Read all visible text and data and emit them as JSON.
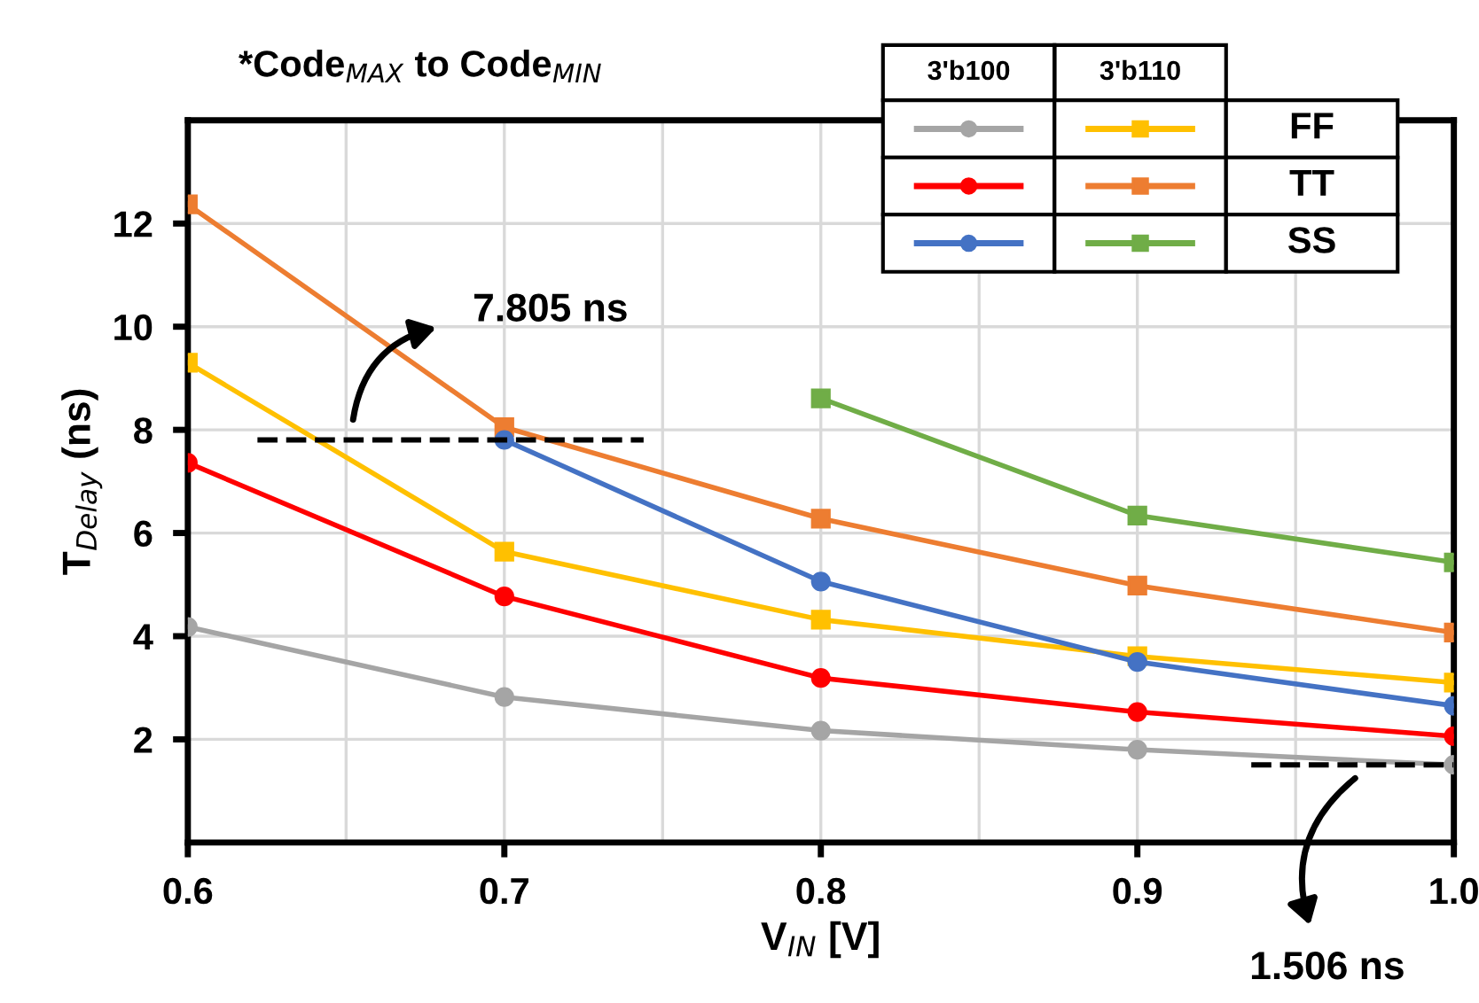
{
  "chart_data": {
    "type": "line",
    "title": "*Code$_{MAX}$ to Code$_{MIN}$",
    "xlabel": "V$_{IN}$ [V]",
    "ylabel": "T$_{Delay}$ (ns)",
    "x": [
      0.6,
      0.7,
      0.8,
      0.9,
      1.0
    ],
    "series": [
      {
        "color": "#a5a5a5",
        "marker": "circle",
        "values": [
          4.18,
          2.82,
          2.17,
          1.8,
          1.506
        ]
      },
      {
        "color": "#ff0000",
        "marker": "circle",
        "values": [
          7.36,
          4.77,
          3.19,
          2.53,
          2.06
        ]
      },
      {
        "color": "#4472c4",
        "marker": "circle",
        "values": [
          null,
          7.805,
          5.06,
          3.5,
          2.65
        ]
      },
      {
        "color": "#ffc000",
        "marker": "square",
        "values": [
          9.3,
          5.64,
          4.32,
          3.61,
          3.1
        ]
      },
      {
        "color": "#ed7d31",
        "marker": "square",
        "values": [
          12.37,
          8.05,
          6.28,
          4.98,
          4.07
        ]
      },
      {
        "color": "#70ad47",
        "marker": "square",
        "values": [
          null,
          null,
          8.61,
          6.34,
          5.43
        ]
      }
    ],
    "xlim": [
      0.6,
      1.0
    ],
    "xticks": [
      {
        "value": 0.6,
        "label": "0.6"
      },
      {
        "value": 0.65,
        "label": null
      },
      {
        "value": 0.7,
        "label": "0.7"
      },
      {
        "value": 0.75,
        "label": null
      },
      {
        "value": 0.8,
        "label": "0.8"
      },
      {
        "value": 0.85,
        "label": null
      },
      {
        "value": 0.9,
        "label": "0.9"
      },
      {
        "value": 0.95,
        "label": null
      },
      {
        "value": 1.0,
        "label": "1.0"
      }
    ],
    "ylim": [
      0,
      14
    ],
    "yticks": [
      2,
      4,
      6,
      8,
      10,
      12
    ],
    "grid": true,
    "line_style": "solid",
    "ref_lines": [
      {
        "axis": "y",
        "value": 7.805,
        "label": "7.805 ns",
        "color": "#000000",
        "line_style": "dashed"
      },
      {
        "axis": "y",
        "value": 1.506,
        "label": "1.506 ns",
        "color": "#000000",
        "line_style": "dashed"
      }
    ],
    "annotations": [
      "3'b100",
      "3'b110",
      "FF",
      "TT",
      "SS"
    ]
  }
}
